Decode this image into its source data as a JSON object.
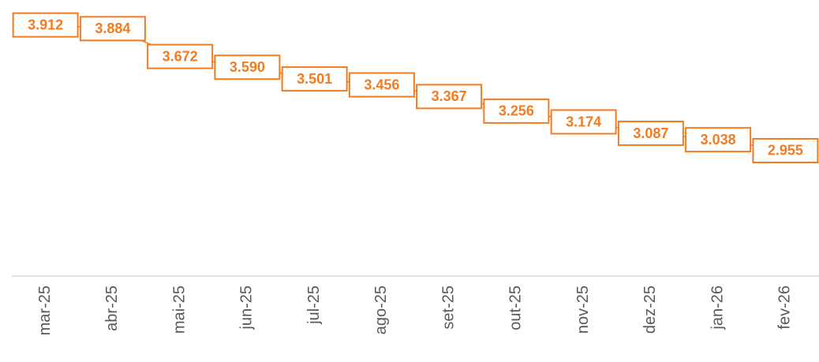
{
  "chart_data": {
    "type": "line",
    "categories": [
      "mar-25",
      "abr-25",
      "mai-25",
      "jun-25",
      "jul-25",
      "ago-25",
      "set-25",
      "out-25",
      "nov-25",
      "dez-25",
      "jan-26",
      "fev-26"
    ],
    "values": [
      3912,
      3884,
      3672,
      3590,
      3501,
      3456,
      3367,
      3256,
      3174,
      3087,
      3038,
      2955
    ],
    "value_labels": [
      "3.912",
      "3.884",
      "3.672",
      "3.590",
      "3.501",
      "3.456",
      "3.367",
      "3.256",
      "3.174",
      "3.087",
      "3.038",
      "2.955"
    ],
    "color": "#f47b20",
    "ylim": [
      2000,
      4000
    ]
  }
}
